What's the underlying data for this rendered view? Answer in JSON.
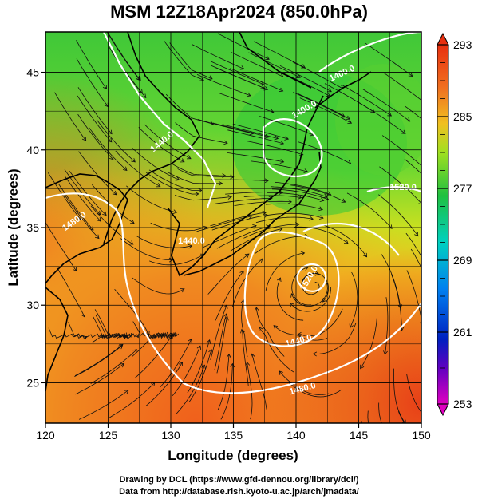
{
  "title": "MSM 12Z18Apr2024 (850.0hPa)",
  "xlabel": "Longitude (degrees)",
  "ylabel": "Latitude  (degrees)",
  "x_ticks": [
    "120",
    "125",
    "130",
    "135",
    "140",
    "145",
    "150"
  ],
  "y_ticks": [
    "25",
    "30",
    "35",
    "40",
    "45"
  ],
  "colorbar_ticks": [
    "293",
    "285",
    "277",
    "269",
    "261",
    "253"
  ],
  "contour_labels": [
    "1400.0",
    "1440.0",
    "1480.0",
    "1440.0",
    "1520.0",
    "1480.0",
    "1520.0",
    "1440.0",
    "1400.0"
  ],
  "credit_line1": "Drawing by DCL (https://www.gfd-dennou.org/library/dcl/)",
  "credit_line2": "Data from http://database.rish.kyoto-u.ac.jp/arch/jmadata/",
  "chart_data": {
    "type": "heatmap",
    "title": "MSM 12Z18Apr2024 (850.0hPa)",
    "xlabel": "Longitude (degrees)",
    "ylabel": "Latitude  (degrees)",
    "xlim": [
      120,
      150
    ],
    "ylim": [
      22.4,
      47.6
    ],
    "color_range": [
      253,
      293
    ],
    "colors": {
      "warm": "#e85a20",
      "mid": "#f0c020",
      "cool": "#30c030",
      "cold": "#0000cc",
      "min": "#cc00cc",
      "max": "#e84010"
    }
  }
}
